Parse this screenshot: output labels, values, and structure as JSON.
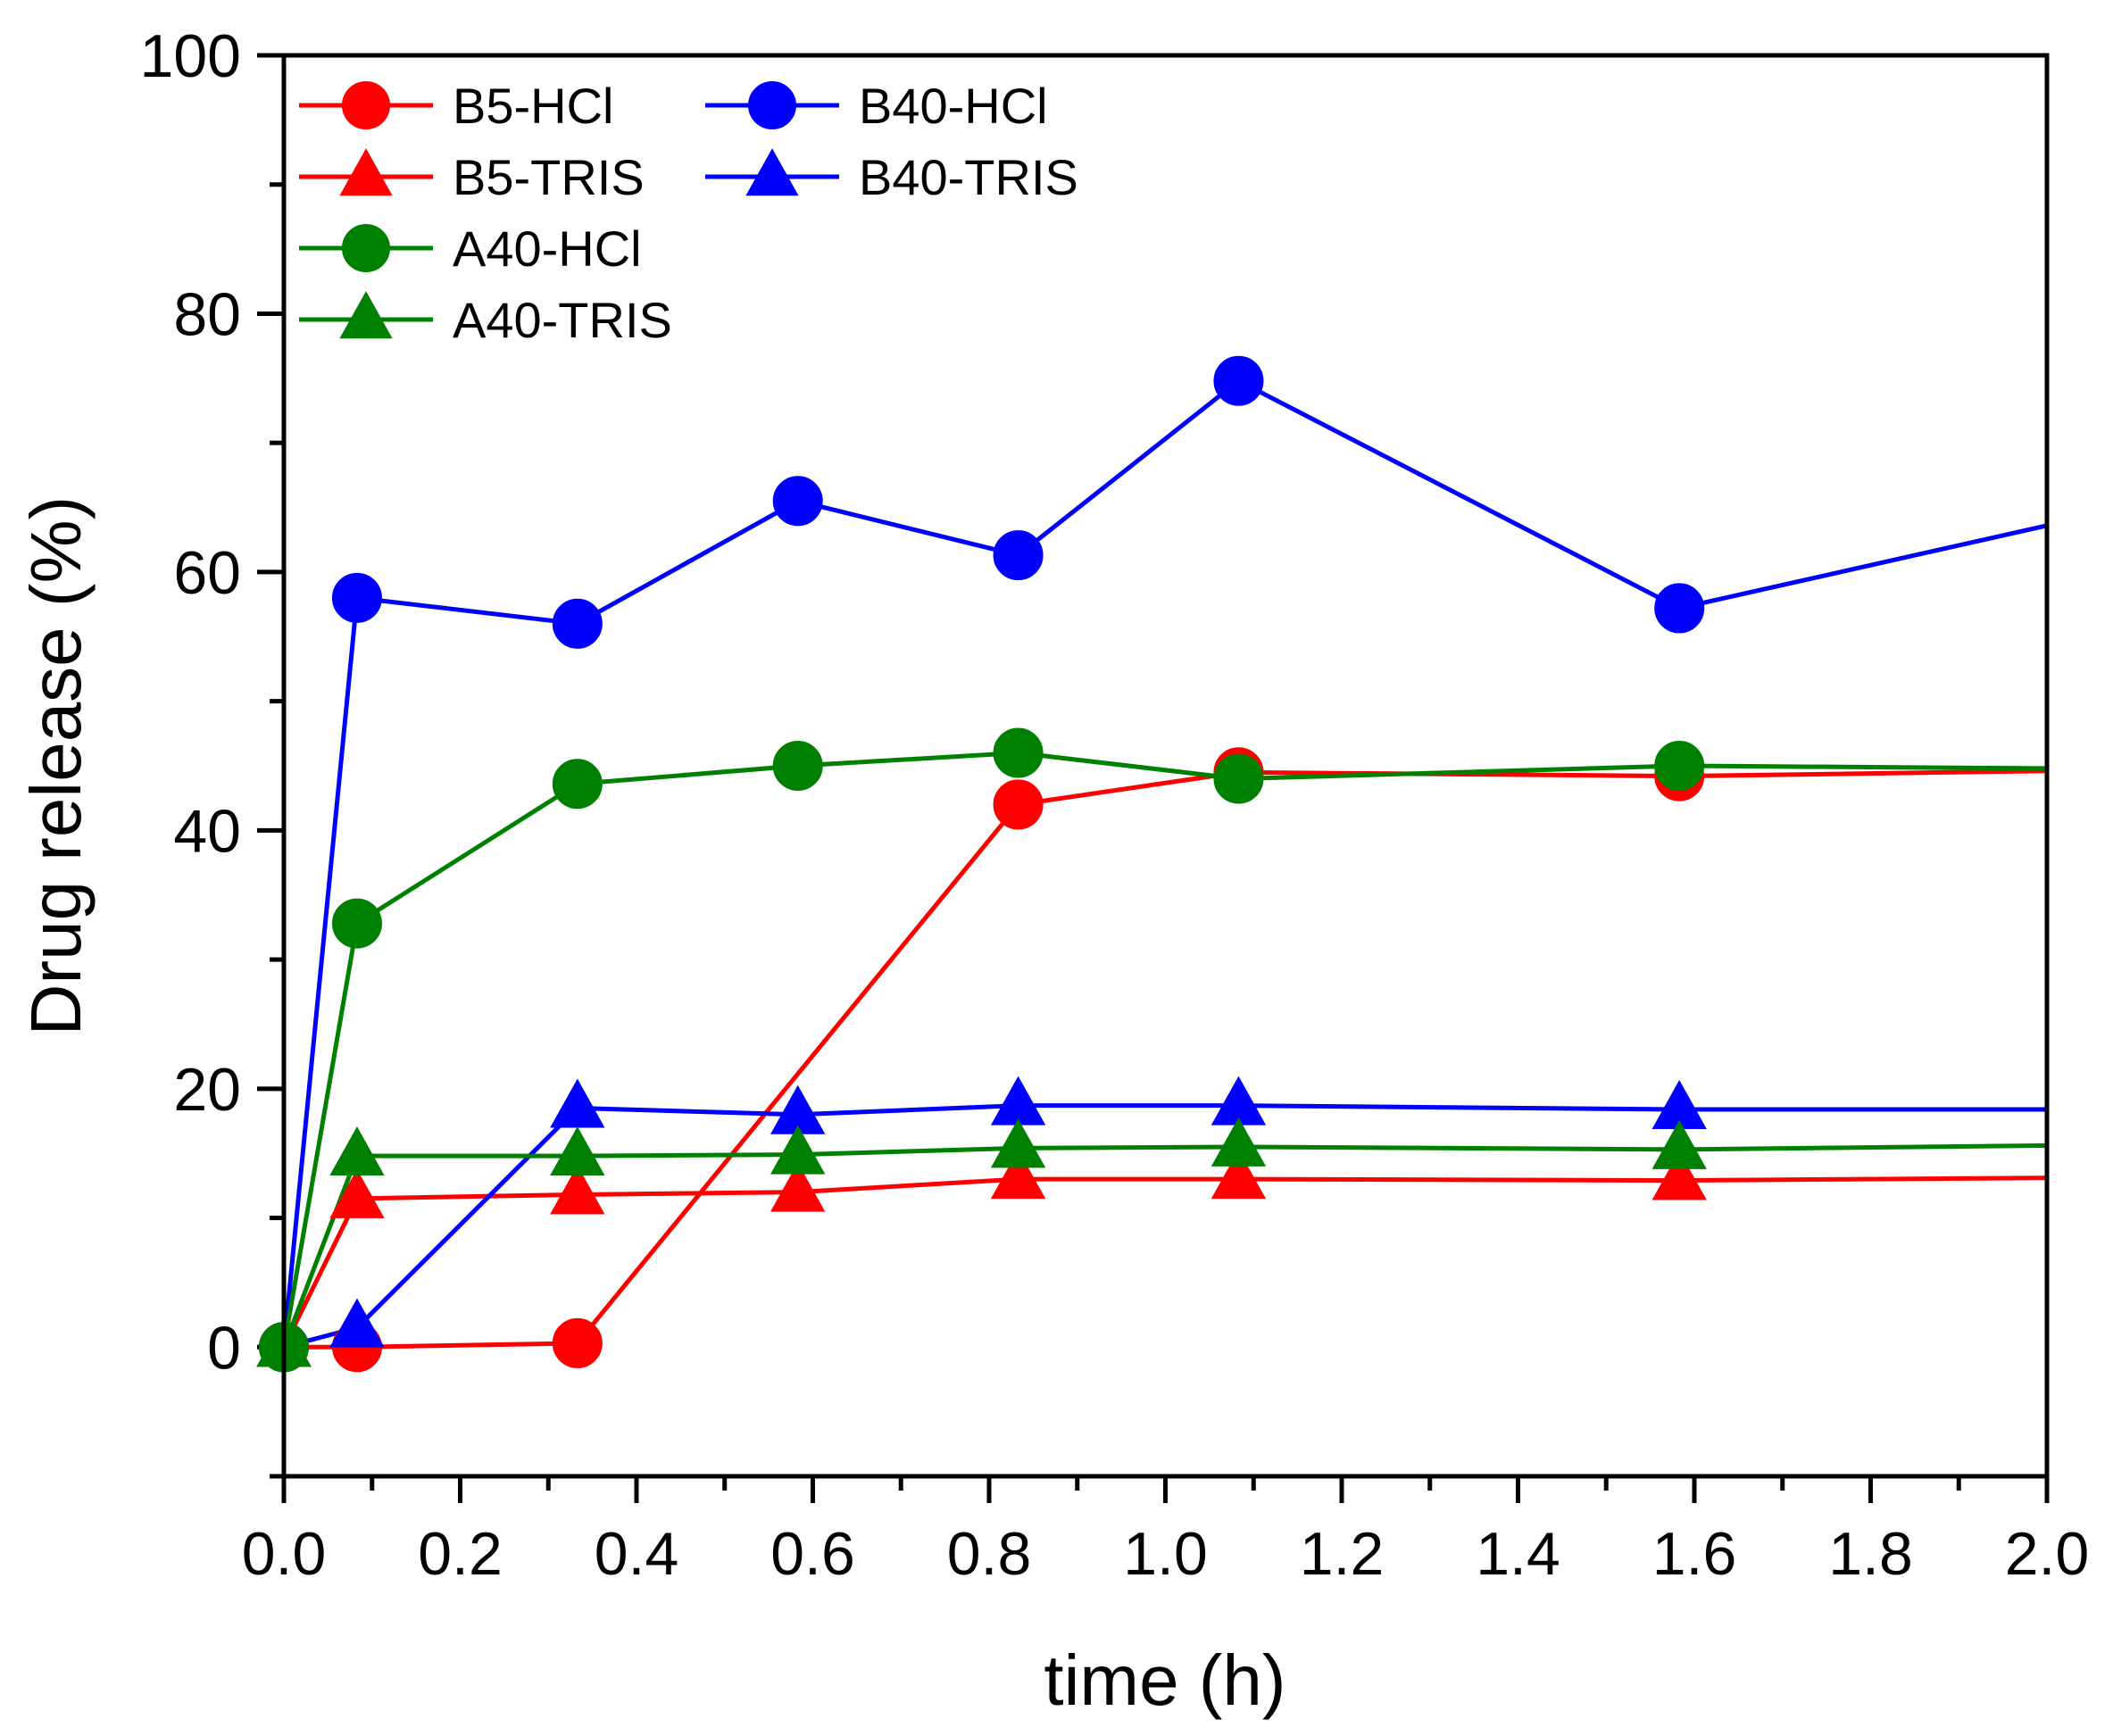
{
  "chart_data": {
    "type": "line",
    "title": "",
    "xlabel": "time (h)",
    "ylabel": "Drug release (%)",
    "xlim": [
      0,
      2.0
    ],
    "ylim": [
      -10,
      100
    ],
    "x_major_ticks": [
      0.0,
      0.2,
      0.4,
      0.6,
      0.8,
      1.0,
      1.2,
      1.4,
      1.6,
      1.8,
      2.0
    ],
    "x_tick_labels": [
      "0.0",
      "0.2",
      "0.4",
      "0.6",
      "0.8",
      "1.0",
      "1.2",
      "1.4",
      "1.6",
      "1.8",
      "2.0"
    ],
    "y_major_ticks": [
      0,
      20,
      40,
      60,
      80,
      100
    ],
    "y_tick_labels": [
      "0",
      "20",
      "40",
      "60",
      "80",
      "100"
    ],
    "grid": false,
    "legend_position": "top-left",
    "series": [
      {
        "name": "B5-HCl",
        "color": "#ff0000",
        "marker": "circle",
        "x": [
          0,
          0.083,
          0.333,
          0.583,
          0.833,
          1.083,
          1.583,
          2.0
        ],
        "y": [
          0,
          0.0,
          0.3,
          null,
          42.0,
          44.5,
          44.2,
          44.6
        ]
      },
      {
        "name": "B5-TRIS",
        "color": "#ff0000",
        "marker": "triangle",
        "x": [
          0,
          0.083,
          0.333,
          0.583,
          0.833,
          1.083,
          1.583,
          2.0
        ],
        "y": [
          0,
          11.5,
          11.8,
          12.0,
          13.0,
          13.0,
          12.9,
          13.1
        ]
      },
      {
        "name": "B40-HCl",
        "color": "#0000ff",
        "marker": "circle",
        "x": [
          0,
          0.083,
          0.333,
          0.583,
          0.833,
          1.083,
          1.583,
          2.0
        ],
        "y": [
          0,
          58.0,
          56.0,
          65.5,
          61.3,
          74.8,
          57.2,
          63.6
        ]
      },
      {
        "name": "B40-TRIS",
        "color": "#0000ff",
        "marker": "triangle",
        "x": [
          0,
          0.083,
          0.333,
          0.583,
          0.833,
          1.083,
          1.583,
          2.0
        ],
        "y": [
          0,
          1.5,
          18.5,
          18.0,
          18.7,
          18.7,
          18.4,
          18.4
        ]
      },
      {
        "name": "A40-HCl",
        "color": "#008000",
        "marker": "circle",
        "x": [
          0,
          0.083,
          0.333,
          0.583,
          0.833,
          1.083,
          1.583,
          2.0
        ],
        "y": [
          0,
          32.8,
          43.6,
          45.0,
          46.0,
          44.0,
          45.0,
          44.8
        ]
      },
      {
        "name": "A40-TRIS",
        "color": "#008000",
        "marker": "triangle",
        "x": [
          0,
          0.083,
          0.333,
          0.583,
          0.833,
          1.083,
          1.583,
          2.0
        ],
        "y": [
          0,
          14.8,
          14.8,
          14.9,
          15.4,
          15.5,
          15.3,
          15.6
        ]
      }
    ]
  }
}
